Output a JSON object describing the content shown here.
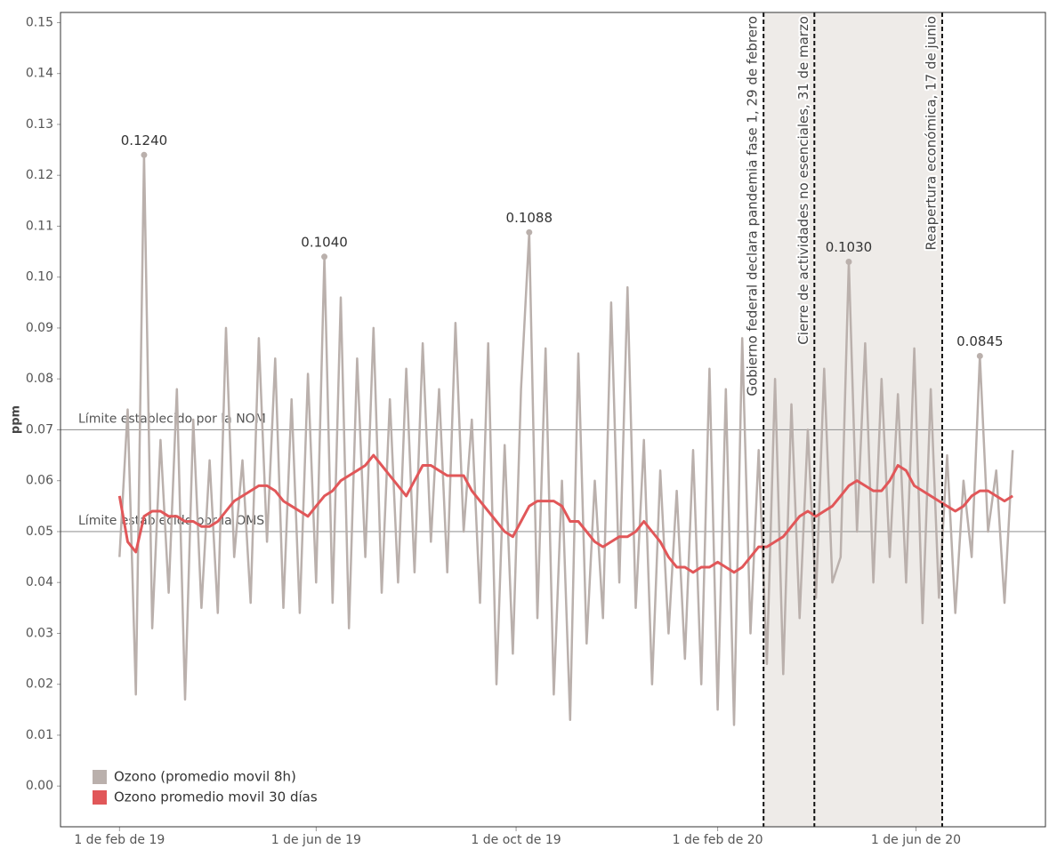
{
  "chart_data": {
    "type": "line",
    "ylabel": "ppm",
    "x": [
      "2019-02-01",
      "2019-02-06",
      "2019-02-11",
      "2019-02-16",
      "2019-02-21",
      "2019-02-26",
      "2019-03-03",
      "2019-03-08",
      "2019-03-13",
      "2019-03-18",
      "2019-03-23",
      "2019-03-28",
      "2019-04-02",
      "2019-04-07",
      "2019-04-12",
      "2019-04-17",
      "2019-04-22",
      "2019-04-27",
      "2019-05-02",
      "2019-05-07",
      "2019-05-12",
      "2019-05-17",
      "2019-05-22",
      "2019-05-27",
      "2019-06-01",
      "2019-06-06",
      "2019-06-11",
      "2019-06-16",
      "2019-06-21",
      "2019-06-26",
      "2019-07-01",
      "2019-07-06",
      "2019-07-11",
      "2019-07-16",
      "2019-07-21",
      "2019-07-26",
      "2019-07-31",
      "2019-08-05",
      "2019-08-10",
      "2019-08-15",
      "2019-08-20",
      "2019-08-25",
      "2019-08-30",
      "2019-09-04",
      "2019-09-09",
      "2019-09-14",
      "2019-09-19",
      "2019-09-24",
      "2019-09-29",
      "2019-10-04",
      "2019-10-09",
      "2019-10-14",
      "2019-10-19",
      "2019-10-24",
      "2019-10-29",
      "2019-11-03",
      "2019-11-08",
      "2019-11-13",
      "2019-11-18",
      "2019-11-23",
      "2019-11-28",
      "2019-12-03",
      "2019-12-08",
      "2019-12-13",
      "2019-12-18",
      "2019-12-23",
      "2019-12-28",
      "2020-01-02",
      "2020-01-07",
      "2020-01-12",
      "2020-01-17",
      "2020-01-22",
      "2020-01-27",
      "2020-02-01",
      "2020-02-06",
      "2020-02-11",
      "2020-02-16",
      "2020-02-21",
      "2020-02-26",
      "2020-03-02",
      "2020-03-07",
      "2020-03-12",
      "2020-03-17",
      "2020-03-22",
      "2020-03-27",
      "2020-04-01",
      "2020-04-06",
      "2020-04-11",
      "2020-04-16",
      "2020-04-21",
      "2020-04-26",
      "2020-05-01",
      "2020-05-06",
      "2020-05-11",
      "2020-05-16",
      "2020-05-21",
      "2020-05-26",
      "2020-05-31",
      "2020-06-05",
      "2020-06-10",
      "2020-06-15",
      "2020-06-20",
      "2020-06-25",
      "2020-06-30",
      "2020-07-05",
      "2020-07-10",
      "2020-07-15",
      "2020-07-20",
      "2020-07-25",
      "2020-07-30"
    ],
    "series": [
      {
        "name": "Ozono (promedio movil 8h)",
        "color": "#bab0ac",
        "values": [
          0.045,
          0.074,
          0.018,
          0.124,
          0.031,
          0.068,
          0.038,
          0.078,
          0.017,
          0.072,
          0.035,
          0.064,
          0.034,
          0.09,
          0.045,
          0.064,
          0.036,
          0.088,
          0.048,
          0.084,
          0.035,
          0.076,
          0.034,
          0.081,
          0.04,
          0.104,
          0.036,
          0.096,
          0.031,
          0.084,
          0.045,
          0.09,
          0.038,
          0.076,
          0.04,
          0.082,
          0.042,
          0.087,
          0.048,
          0.078,
          0.042,
          0.091,
          0.05,
          0.072,
          0.036,
          0.087,
          0.02,
          0.067,
          0.026,
          0.078,
          0.1088,
          0.033,
          0.086,
          0.018,
          0.06,
          0.013,
          0.085,
          0.028,
          0.06,
          0.033,
          0.095,
          0.04,
          0.098,
          0.035,
          0.068,
          0.02,
          0.062,
          0.03,
          0.058,
          0.025,
          0.066,
          0.02,
          0.082,
          0.015,
          0.078,
          0.012,
          0.088,
          0.03,
          0.066,
          0.024,
          0.08,
          0.022,
          0.075,
          0.033,
          0.07,
          0.037,
          0.082,
          0.04,
          0.045,
          0.103,
          0.05,
          0.087,
          0.04,
          0.08,
          0.045,
          0.077,
          0.04,
          0.086,
          0.032,
          0.078,
          0.037,
          0.065,
          0.034,
          0.06,
          0.045,
          0.0845,
          0.05,
          0.062,
          0.036,
          0.066
        ],
        "value_labels": [
          null,
          null,
          null,
          "0.1240",
          null,
          null,
          null,
          null,
          null,
          null,
          null,
          null,
          null,
          null,
          null,
          null,
          null,
          null,
          null,
          null,
          null,
          null,
          null,
          null,
          null,
          "0.1040",
          null,
          null,
          null,
          null,
          null,
          null,
          null,
          null,
          null,
          null,
          null,
          null,
          null,
          null,
          null,
          null,
          null,
          null,
          null,
          null,
          null,
          null,
          null,
          null,
          "0.1088",
          null,
          null,
          null,
          null,
          null,
          null,
          null,
          null,
          null,
          null,
          null,
          null,
          null,
          null,
          null,
          null,
          null,
          null,
          null,
          null,
          null,
          null,
          null,
          null,
          null,
          null,
          null,
          null,
          null,
          null,
          null,
          null,
          null,
          null,
          null,
          null,
          null,
          null,
          "0.1030",
          null,
          null,
          null,
          null,
          null,
          null,
          null,
          null,
          null,
          null,
          null,
          null,
          null,
          null,
          null,
          "0.0845",
          null,
          null,
          null,
          null
        ]
      },
      {
        "name": "Ozono promedio movil 30 días",
        "color": "#e15759",
        "values": [
          0.057,
          0.048,
          0.046,
          0.053,
          0.054,
          0.054,
          0.053,
          0.053,
          0.052,
          0.052,
          0.051,
          0.051,
          0.052,
          0.054,
          0.056,
          0.057,
          0.058,
          0.059,
          0.059,
          0.058,
          0.056,
          0.055,
          0.054,
          0.053,
          0.055,
          0.057,
          0.058,
          0.06,
          0.061,
          0.062,
          0.063,
          0.065,
          0.063,
          0.061,
          0.059,
          0.057,
          0.06,
          0.063,
          0.063,
          0.062,
          0.061,
          0.061,
          0.061,
          0.058,
          0.056,
          0.054,
          0.052,
          0.05,
          0.049,
          0.052,
          0.055,
          0.056,
          0.056,
          0.056,
          0.055,
          0.052,
          0.052,
          0.05,
          0.048,
          0.047,
          0.048,
          0.049,
          0.049,
          0.05,
          0.052,
          0.05,
          0.048,
          0.045,
          0.043,
          0.043,
          0.042,
          0.043,
          0.043,
          0.044,
          0.043,
          0.042,
          0.043,
          0.045,
          0.047,
          0.047,
          0.048,
          0.049,
          0.051,
          0.053,
          0.054,
          0.053,
          0.054,
          0.055,
          0.057,
          0.059,
          0.06,
          0.059,
          0.058,
          0.058,
          0.06,
          0.063,
          0.062,
          0.059,
          0.058,
          0.057,
          0.056,
          0.055,
          0.054,
          0.055,
          0.057,
          0.058,
          0.058,
          0.057,
          0.056,
          0.057
        ]
      }
    ],
    "xlim": [
      "2018-12-27",
      "2020-08-19"
    ],
    "xticks": [
      {
        "value": "2019-02-01",
        "label": "1 de feb de 19"
      },
      {
        "value": "2019-06-01",
        "label": "1 de jun de 19"
      },
      {
        "value": "2019-10-01",
        "label": "1 de oct de 19"
      },
      {
        "value": "2020-02-01",
        "label": "1 de feb de 20"
      },
      {
        "value": "2020-06-01",
        "label": "1 de jun de 20"
      }
    ],
    "ylim": [
      -0.008,
      0.152
    ],
    "yticks": [
      {
        "value": 0,
        "label": "0.00"
      },
      {
        "value": 0.01,
        "label": "0.01"
      },
      {
        "value": 0.02,
        "label": "0.02"
      },
      {
        "value": 0.03,
        "label": "0.03"
      },
      {
        "value": 0.04,
        "label": "0.04"
      },
      {
        "value": 0.05,
        "label": "0.05"
      },
      {
        "value": 0.06,
        "label": "0.06"
      },
      {
        "value": 0.07,
        "label": "0.07"
      },
      {
        "value": 0.08,
        "label": "0.08"
      },
      {
        "value": 0.09,
        "label": "0.09"
      },
      {
        "value": 0.1,
        "label": "0.10"
      },
      {
        "value": 0.11,
        "label": "0.11"
      },
      {
        "value": 0.12,
        "label": "0.12"
      },
      {
        "value": 0.13,
        "label": "0.13"
      },
      {
        "value": 0.14,
        "label": "0.14"
      },
      {
        "value": 0.15,
        "label": "0.15"
      }
    ],
    "hlines": [
      {
        "value": 0.07,
        "label": "Límite establecido por la NOM"
      },
      {
        "value": 0.05,
        "label": "Límite establecido por la OMS"
      }
    ],
    "events": [
      {
        "x": "2020-02-29",
        "label": "Gobierno federal declara pandemia fase 1, 29 de febrero"
      },
      {
        "x": "2020-03-31",
        "label": "Cierre de actividades no esenciales, 31 de marzo"
      },
      {
        "x": "2020-06-17",
        "label": "Reapertura económica, 17 de junio"
      }
    ],
    "legend": "lower left",
    "grid": false
  }
}
